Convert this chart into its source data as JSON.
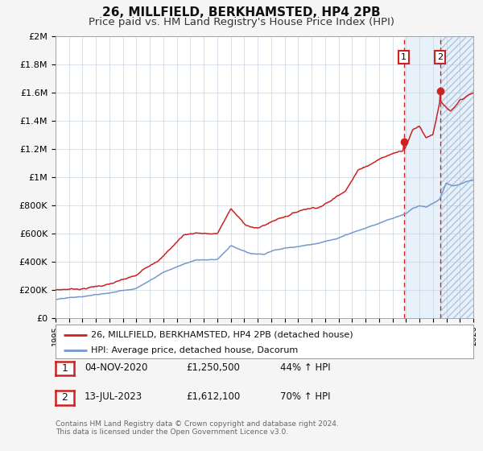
{
  "title": "26, MILLFIELD, BERKHAMSTED, HP4 2PB",
  "subtitle": "Price paid vs. HM Land Registry's House Price Index (HPI)",
  "ylim": [
    0,
    2000000
  ],
  "xlim_start": 1995.0,
  "xlim_end": 2026.0,
  "red_line_color": "#cc2222",
  "blue_line_color": "#7799cc",
  "marker1_date": 2020.84,
  "marker1_value": 1250500,
  "marker2_date": 2023.53,
  "marker2_value": 1612100,
  "vline1_x": 2020.84,
  "vline2_x": 2023.53,
  "shade_start": 2020.84,
  "shade_end": 2026.0,
  "hatch_start": 2023.53,
  "hatch_end": 2026.0,
  "legend_label1": "26, MILLFIELD, BERKHAMSTED, HP4 2PB (detached house)",
  "legend_label2": "HPI: Average price, detached house, Dacorum",
  "table_rows": [
    {
      "num": "1",
      "date": "04-NOV-2020",
      "price": "£1,250,500",
      "pct": "44% ↑ HPI"
    },
    {
      "num": "2",
      "date": "13-JUL-2023",
      "price": "£1,612,100",
      "pct": "70% ↑ HPI"
    }
  ],
  "footer": "Contains HM Land Registry data © Crown copyright and database right 2024.\nThis data is licensed under the Open Government Licence v3.0.",
  "ytick_labels": [
    "£0",
    "£200K",
    "£400K",
    "£600K",
    "£800K",
    "£1M",
    "£1.2M",
    "£1.4M",
    "£1.6M",
    "£1.8M",
    "£2M"
  ],
  "ytick_values": [
    0,
    200000,
    400000,
    600000,
    800000,
    1000000,
    1200000,
    1400000,
    1600000,
    1800000,
    2000000
  ],
  "fig_bg_color": "#f5f5f5",
  "plot_bg_color": "#ffffff",
  "grid_color": "#c8d4e0",
  "title_fontsize": 11,
  "subtitle_fontsize": 9.5
}
